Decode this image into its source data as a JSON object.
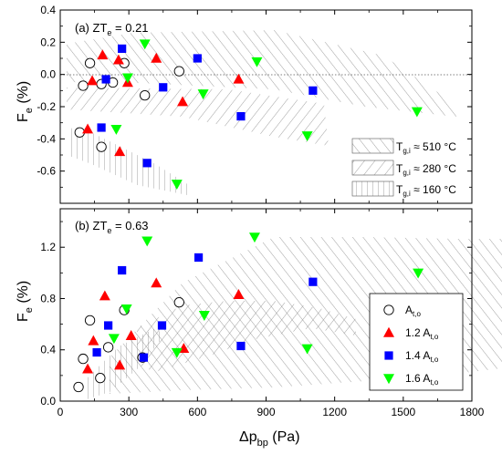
{
  "chart_data": [
    {
      "type": "scatter",
      "panel_label": "(a) ZT",
      "panel_label_sub": "e",
      "panel_label_value": " = 0.21",
      "ylabel": "F",
      "ylabel_sub": "e",
      "ylabel_unit": " (%)",
      "xlim": [
        0,
        1800
      ],
      "ylim": [
        -0.8,
        0.4
      ],
      "yticks": [
        "-0.6",
        "-0.4",
        "-0.2",
        "0.0",
        "0.2",
        "0.4"
      ],
      "ytick_values": [
        -0.6,
        -0.4,
        -0.2,
        0.0,
        0.2,
        0.4
      ],
      "reference_line_y": 0.0,
      "legend": [
        {
          "prefix": "T",
          "sub": "g,i",
          "text": " ≈ 510 °C",
          "hatch": "back"
        },
        {
          "prefix": "T",
          "sub": "g,i",
          "text": " ≈ 280 °C",
          "hatch": "fwd"
        },
        {
          "prefix": "T",
          "sub": "g,i",
          "text": " ≈ 160 °C",
          "hatch": "vert"
        }
      ],
      "series": [
        {
          "marker": "circle",
          "points": [
            [
              85,
              -0.36
            ],
            [
              100,
              -0.07
            ],
            [
              130,
              0.07
            ],
            [
              180,
              -0.45
            ],
            [
              180,
              -0.06
            ],
            [
              230,
              -0.05
            ],
            [
              280,
              0.07
            ],
            [
              370,
              -0.13
            ],
            [
              520,
              0.02
            ]
          ]
        },
        {
          "marker": "triangle-up",
          "color": "#ff0000",
          "points": [
            [
              120,
              -0.34
            ],
            [
              140,
              -0.04
            ],
            [
              185,
              0.12
            ],
            [
              255,
              0.09
            ],
            [
              260,
              -0.48
            ],
            [
              295,
              -0.05
            ],
            [
              420,
              0.1
            ],
            [
              535,
              -0.17
            ],
            [
              780,
              -0.03
            ]
          ]
        },
        {
          "marker": "square",
          "color": "#0000ff",
          "points": [
            [
              180,
              -0.33
            ],
            [
              200,
              -0.03
            ],
            [
              270,
              0.16
            ],
            [
              380,
              -0.55
            ],
            [
              450,
              -0.08
            ],
            [
              600,
              0.1
            ],
            [
              790,
              -0.26
            ],
            [
              1105,
              -0.1
            ]
          ]
        },
        {
          "marker": "triangle-down",
          "color": "#00ff00",
          "points": [
            [
              245,
              -0.34
            ],
            [
              295,
              -0.02
            ],
            [
              370,
              0.19
            ],
            [
              510,
              -0.68
            ],
            [
              625,
              -0.12
            ],
            [
              860,
              0.08
            ],
            [
              1080,
              -0.38
            ],
            [
              1560,
              -0.23
            ]
          ]
        }
      ]
    },
    {
      "type": "scatter",
      "panel_label": "(b) ZT",
      "panel_label_sub": "e",
      "panel_label_value": " = 0.63",
      "xlabel": "Δp",
      "xlabel_sub": "bp",
      "xlabel_unit": " (Pa)",
      "ylabel": "F",
      "ylabel_sub": "e",
      "ylabel_unit": " (%)",
      "xlim": [
        0,
        1800
      ],
      "ylim": [
        0.0,
        1.5
      ],
      "xticks": [
        "0",
        "300",
        "600",
        "900",
        "1200",
        "1500",
        "1800"
      ],
      "xtick_values": [
        0,
        300,
        600,
        900,
        1200,
        1500,
        1800
      ],
      "yticks": [
        "0.0",
        "0.4",
        "0.8",
        "1.2"
      ],
      "ytick_values": [
        0.0,
        0.4,
        0.8,
        1.2
      ],
      "legend": [
        {
          "marker": "circle",
          "coef": "",
          "label": "A",
          "sub": "t,o"
        },
        {
          "marker": "triangle-up",
          "color": "#ff0000",
          "coef": "1.2 ",
          "label": "A",
          "sub": "t,o"
        },
        {
          "marker": "square",
          "color": "#0000ff",
          "coef": "1.4 ",
          "label": "A",
          "sub": "t,o"
        },
        {
          "marker": "triangle-down",
          "color": "#00ff00",
          "coef": "1.6 ",
          "label": "A",
          "sub": "t,o"
        }
      ],
      "series": [
        {
          "marker": "circle",
          "points": [
            [
              80,
              0.11
            ],
            [
              100,
              0.33
            ],
            [
              130,
              0.63
            ],
            [
              175,
              0.18
            ],
            [
              210,
              0.42
            ],
            [
              280,
              0.71
            ],
            [
              360,
              0.34
            ],
            [
              520,
              0.77
            ]
          ]
        },
        {
          "marker": "triangle-up",
          "color": "#ff0000",
          "points": [
            [
              120,
              0.25
            ],
            [
              145,
              0.47
            ],
            [
              195,
              0.82
            ],
            [
              260,
              0.28
            ],
            [
              310,
              0.51
            ],
            [
              420,
              0.92
            ],
            [
              540,
              0.41
            ],
            [
              780,
              0.83
            ]
          ]
        },
        {
          "marker": "square",
          "color": "#0000ff",
          "points": [
            [
              160,
              0.38
            ],
            [
              210,
              0.59
            ],
            [
              270,
              1.02
            ],
            [
              365,
              0.34
            ],
            [
              445,
              0.59
            ],
            [
              605,
              1.12
            ],
            [
              790,
              0.43
            ],
            [
              1105,
              0.93
            ]
          ]
        },
        {
          "marker": "triangle-down",
          "color": "#00ff00",
          "points": [
            [
              235,
              0.49
            ],
            [
              290,
              0.72
            ],
            [
              380,
              1.25
            ],
            [
              510,
              0.38
            ],
            [
              630,
              0.67
            ],
            [
              850,
              1.28
            ],
            [
              1080,
              0.41
            ],
            [
              1565,
              1.0
            ]
          ]
        }
      ]
    }
  ]
}
